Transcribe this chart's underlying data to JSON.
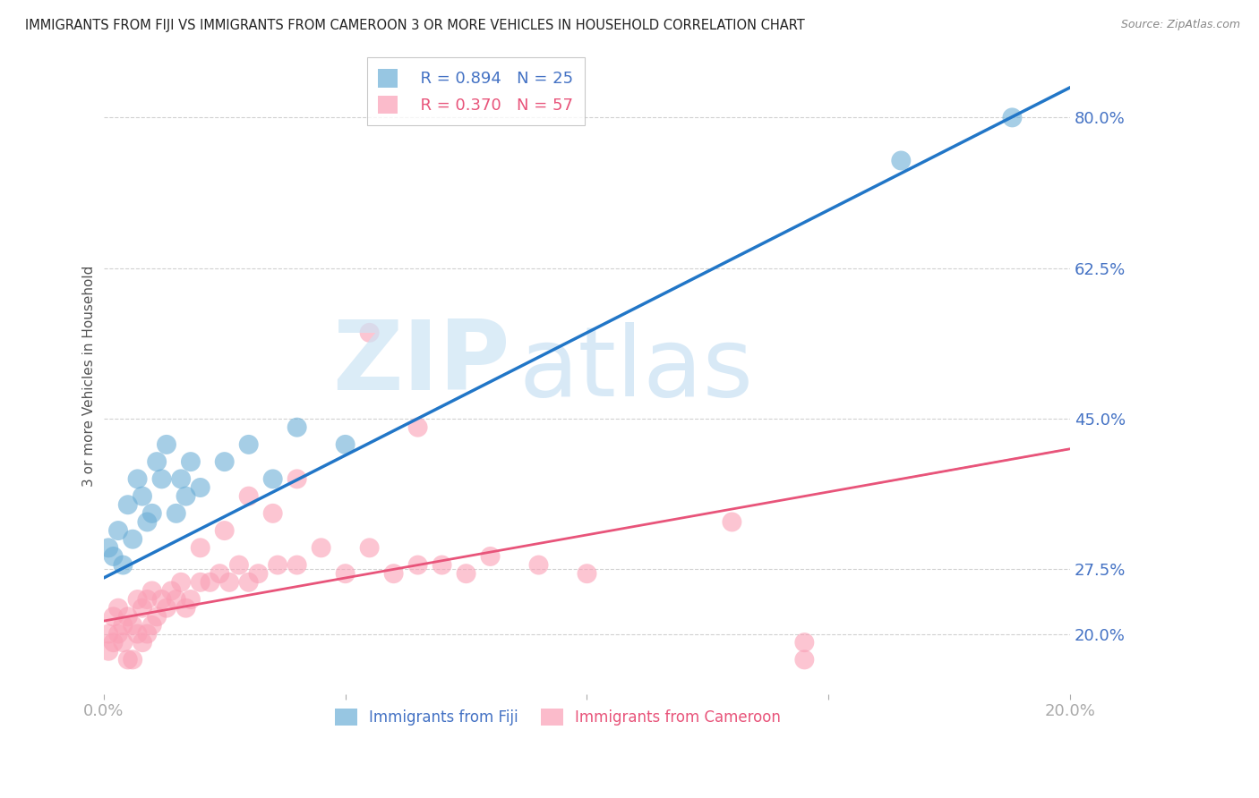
{
  "title": "IMMIGRANTS FROM FIJI VS IMMIGRANTS FROM CAMEROON 3 OR MORE VEHICLES IN HOUSEHOLD CORRELATION CHART",
  "source": "Source: ZipAtlas.com",
  "ylabel": "3 or more Vehicles in Household",
  "fiji_label": "Immigrants from Fiji",
  "cameroon_label": "Immigrants from Cameroon",
  "fiji_r": "R = 0.894",
  "fiji_n": "N = 25",
  "cameroon_r": "R = 0.370",
  "cameroon_n": "N = 57",
  "fiji_color": "#6baed6",
  "cameroon_color": "#fa9fb5",
  "fiji_line_color": "#2176c7",
  "cameroon_line_color": "#e8547a",
  "xlim": [
    0.0,
    0.2
  ],
  "ylim": [
    0.13,
    0.87
  ],
  "yticks": [
    0.2,
    0.275,
    0.45,
    0.625,
    0.8
  ],
  "ytick_labels": [
    "20.0%",
    "27.5%",
    "45.0%",
    "62.5%",
    "80.0%"
  ],
  "xticks": [
    0.0,
    0.05,
    0.1,
    0.15,
    0.2
  ],
  "xtick_labels": [
    "0.0%",
    "",
    "",
    "",
    "20.0%"
  ],
  "fiji_scatter_x": [
    0.001,
    0.002,
    0.003,
    0.004,
    0.005,
    0.006,
    0.007,
    0.008,
    0.009,
    0.01,
    0.011,
    0.012,
    0.013,
    0.015,
    0.016,
    0.017,
    0.018,
    0.02,
    0.025,
    0.03,
    0.035,
    0.04,
    0.05,
    0.165,
    0.188
  ],
  "fiji_scatter_y": [
    0.3,
    0.29,
    0.32,
    0.28,
    0.35,
    0.31,
    0.38,
    0.36,
    0.33,
    0.34,
    0.4,
    0.38,
    0.42,
    0.34,
    0.38,
    0.36,
    0.4,
    0.37,
    0.4,
    0.42,
    0.38,
    0.44,
    0.42,
    0.75,
    0.8
  ],
  "cameroon_scatter_x": [
    0.001,
    0.001,
    0.002,
    0.002,
    0.003,
    0.003,
    0.004,
    0.004,
    0.005,
    0.005,
    0.006,
    0.006,
    0.007,
    0.007,
    0.008,
    0.008,
    0.009,
    0.009,
    0.01,
    0.01,
    0.011,
    0.012,
    0.013,
    0.014,
    0.015,
    0.016,
    0.017,
    0.018,
    0.02,
    0.022,
    0.024,
    0.026,
    0.028,
    0.03,
    0.032,
    0.036,
    0.04,
    0.045,
    0.05,
    0.055,
    0.06,
    0.065,
    0.07,
    0.075,
    0.08,
    0.09,
    0.1,
    0.035,
    0.025,
    0.02,
    0.03,
    0.04,
    0.055,
    0.065,
    0.13,
    0.145,
    0.145
  ],
  "cameroon_scatter_y": [
    0.2,
    0.18,
    0.19,
    0.22,
    0.2,
    0.23,
    0.19,
    0.21,
    0.17,
    0.22,
    0.17,
    0.21,
    0.2,
    0.24,
    0.19,
    0.23,
    0.2,
    0.24,
    0.21,
    0.25,
    0.22,
    0.24,
    0.23,
    0.25,
    0.24,
    0.26,
    0.23,
    0.24,
    0.26,
    0.26,
    0.27,
    0.26,
    0.28,
    0.26,
    0.27,
    0.28,
    0.28,
    0.3,
    0.27,
    0.3,
    0.27,
    0.28,
    0.28,
    0.27,
    0.29,
    0.28,
    0.27,
    0.34,
    0.32,
    0.3,
    0.36,
    0.38,
    0.55,
    0.44,
    0.33,
    0.17,
    0.19
  ],
  "fiji_trend_x": [
    0.0,
    0.2
  ],
  "fiji_trend_y": [
    0.265,
    0.835
  ],
  "cameroon_trend_x": [
    0.0,
    0.2
  ],
  "cameroon_trend_y": [
    0.215,
    0.415
  ],
  "background_color": "#ffffff",
  "grid_color": "#cccccc",
  "axis_label_color": "#555555",
  "title_color": "#222222"
}
